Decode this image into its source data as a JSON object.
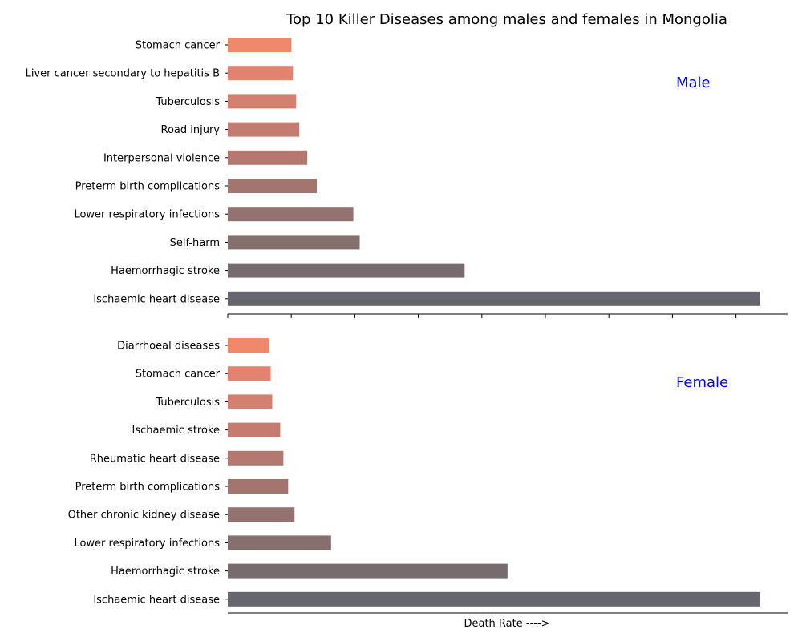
{
  "chart_data": {
    "title": "Top 10 Killer Diseases among males and females in Mongolia",
    "xlabel": "Death Rate ---->",
    "type": "bar",
    "orientation": "horizontal",
    "x_ticklabels_visible": false,
    "grid": false,
    "panels": [
      {
        "label": "Male",
        "categories": [
          "Stomach cancer",
          "Liver cancer secondary to hepatitis B",
          "Tuberculosis",
          "Road injury",
          "Interpersonal violence",
          "Preterm birth complications",
          "Lower respiratory infections",
          "Self-harm",
          "Haemorrhagic stroke",
          "Ischaemic heart disease"
        ],
        "values": [
          40,
          41,
          43,
          45,
          50,
          56,
          79,
          83,
          149,
          335
        ],
        "colors": [
          "#f0886c",
          "#e2836f",
          "#d48071",
          "#c57b70",
          "#b47870",
          "#a4756f",
          "#94726f",
          "#86706e",
          "#786b6e",
          "#66666f"
        ]
      },
      {
        "label": "Female",
        "categories": [
          "Diarrhoeal diseases",
          "Stomach cancer",
          "Tuberculosis",
          "Ischaemic stroke",
          "Rheumatic heart disease",
          "Preterm birth complications",
          "Other chronic kidney disease",
          "Lower respiratory infections",
          "Haemorrhagic stroke",
          "Ischaemic heart disease"
        ],
        "values": [
          26,
          27,
          28,
          33,
          35,
          38,
          42,
          65,
          176,
          335
        ],
        "colors": [
          "#f0886c",
          "#e2836f",
          "#d48071",
          "#c57b70",
          "#b47870",
          "#a4756f",
          "#94726f",
          "#86706e",
          "#786b6e",
          "#66666f"
        ]
      }
    ]
  }
}
